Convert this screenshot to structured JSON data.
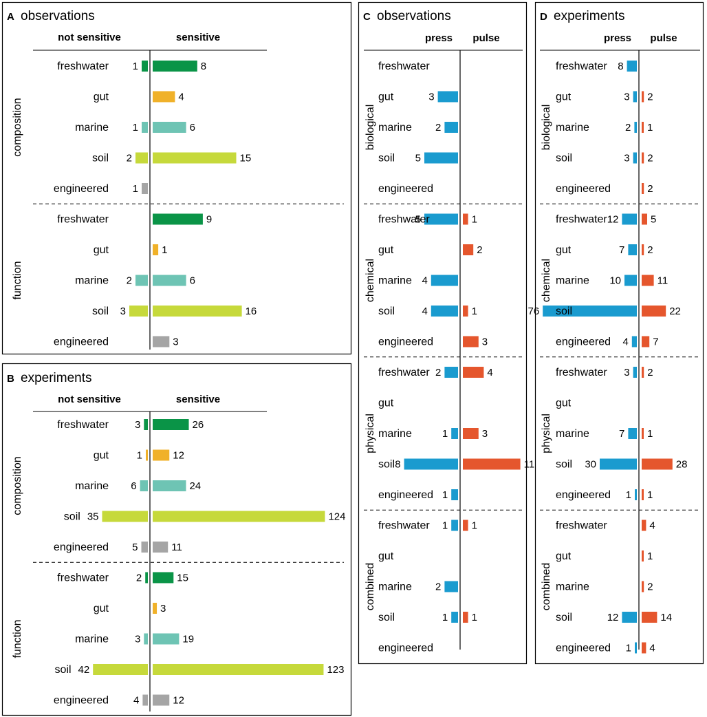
{
  "colors": {
    "freshwater": "#0a9447",
    "gut": "#f0b129",
    "marine": "#6ec4b4",
    "soil": "#c6d93b",
    "engineered": "#a5a5a5",
    "press": "#1a9bcf",
    "pulse": "#e5562d"
  },
  "chart_data": [
    {
      "id": "A",
      "letter": "A",
      "title": "observations",
      "type": "bar",
      "left_header": "not sensitive",
      "right_header": "sensitive",
      "groups": [
        {
          "label": "composition",
          "rows": [
            {
              "category": "freshwater",
              "left": 1,
              "right": 8
            },
            {
              "category": "gut",
              "left": null,
              "right": 4
            },
            {
              "category": "marine",
              "left": 1,
              "right": 6
            },
            {
              "category": "soil",
              "left": 2,
              "right": 15
            },
            {
              "category": "engineered",
              "left": 1,
              "right": null
            }
          ]
        },
        {
          "label": "function",
          "rows": [
            {
              "category": "freshwater",
              "left": null,
              "right": 9
            },
            {
              "category": "gut",
              "left": null,
              "right": 1
            },
            {
              "category": "marine",
              "left": 2,
              "right": 6
            },
            {
              "category": "soil",
              "left": 3,
              "right": 16
            },
            {
              "category": "engineered",
              "left": null,
              "right": 3
            }
          ]
        }
      ]
    },
    {
      "id": "B",
      "letter": "B",
      "title": "experiments",
      "type": "bar",
      "left_header": "not sensitive",
      "right_header": "sensitive",
      "groups": [
        {
          "label": "composition",
          "rows": [
            {
              "category": "freshwater",
              "left": 3,
              "right": 26
            },
            {
              "category": "gut",
              "left": 1,
              "right": 12
            },
            {
              "category": "marine",
              "left": 6,
              "right": 24
            },
            {
              "category": "soil",
              "left": 35,
              "right": 124
            },
            {
              "category": "engineered",
              "left": 5,
              "right": 11
            }
          ]
        },
        {
          "label": "function",
          "rows": [
            {
              "category": "freshwater",
              "left": 2,
              "right": 15
            },
            {
              "category": "gut",
              "left": null,
              "right": 3
            },
            {
              "category": "marine",
              "left": 3,
              "right": 19
            },
            {
              "category": "soil",
              "left": 42,
              "right": 123
            },
            {
              "category": "engineered",
              "left": 4,
              "right": 12
            }
          ]
        }
      ]
    },
    {
      "id": "C",
      "letter": "C",
      "title": "observations",
      "type": "bar",
      "left_header": "press",
      "right_header": "pulse",
      "groups": [
        {
          "label": "biological",
          "rows": [
            {
              "category": "freshwater",
              "left": null,
              "right": null
            },
            {
              "category": "gut",
              "left": 3,
              "right": null
            },
            {
              "category": "marine",
              "left": 2,
              "right": null
            },
            {
              "category": "soil",
              "left": 5,
              "right": null
            },
            {
              "category": "engineered",
              "left": null,
              "right": null
            }
          ]
        },
        {
          "label": "chemical",
          "rows": [
            {
              "category": "freshwater",
              "left": 5,
              "right": 1
            },
            {
              "category": "gut",
              "left": null,
              "right": 2
            },
            {
              "category": "marine",
              "left": 4,
              "right": null
            },
            {
              "category": "soil",
              "left": 4,
              "right": 1
            },
            {
              "category": "engineered",
              "left": null,
              "right": 3
            }
          ]
        },
        {
          "label": "physical",
          "rows": [
            {
              "category": "freshwater",
              "left": 2,
              "right": 4
            },
            {
              "category": "gut",
              "left": null,
              "right": null
            },
            {
              "category": "marine",
              "left": 1,
              "right": 3
            },
            {
              "category": "soil",
              "left": 8,
              "right": 11
            },
            {
              "category": "engineered",
              "left": 1,
              "right": null
            }
          ]
        },
        {
          "label": "combined",
          "rows": [
            {
              "category": "freshwater",
              "left": 1,
              "right": 1
            },
            {
              "category": "gut",
              "left": null,
              "right": null
            },
            {
              "category": "marine",
              "left": 2,
              "right": null
            },
            {
              "category": "soil",
              "left": 1,
              "right": 1
            },
            {
              "category": "engineered",
              "left": null,
              "right": null
            }
          ]
        }
      ]
    },
    {
      "id": "D",
      "letter": "D",
      "title": "experiments",
      "type": "bar",
      "left_header": "press",
      "right_header": "pulse",
      "groups": [
        {
          "label": "biological",
          "rows": [
            {
              "category": "freshwater",
              "left": 8,
              "right": null
            },
            {
              "category": "gut",
              "left": 3,
              "right": 2
            },
            {
              "category": "marine",
              "left": 2,
              "right": 1
            },
            {
              "category": "soil",
              "left": 3,
              "right": 2
            },
            {
              "category": "engineered",
              "left": null,
              "right": 2
            }
          ]
        },
        {
          "label": "chemical",
          "rows": [
            {
              "category": "freshwater",
              "left": 12,
              "right": 5
            },
            {
              "category": "gut",
              "left": 7,
              "right": 2
            },
            {
              "category": "marine",
              "left": 10,
              "right": 11
            },
            {
              "category": "soil",
              "left": 76,
              "right": 22
            },
            {
              "category": "engineered",
              "left": 4,
              "right": 7
            }
          ]
        },
        {
          "label": "physical",
          "rows": [
            {
              "category": "freshwater",
              "left": 3,
              "right": 2
            },
            {
              "category": "gut",
              "left": null,
              "right": null
            },
            {
              "category": "marine",
              "left": 7,
              "right": 1
            },
            {
              "category": "soil",
              "left": 30,
              "right": 28
            },
            {
              "category": "engineered",
              "left": 1,
              "right": 1
            }
          ]
        },
        {
          "label": "combined",
          "rows": [
            {
              "category": "freshwater",
              "left": null,
              "right": 4
            },
            {
              "category": "gut",
              "left": null,
              "right": 1
            },
            {
              "category": "marine",
              "left": null,
              "right": 2
            },
            {
              "category": "soil",
              "left": 12,
              "right": 14
            },
            {
              "category": "engineered",
              "left": 1,
              "right": 4
            }
          ]
        }
      ]
    }
  ]
}
